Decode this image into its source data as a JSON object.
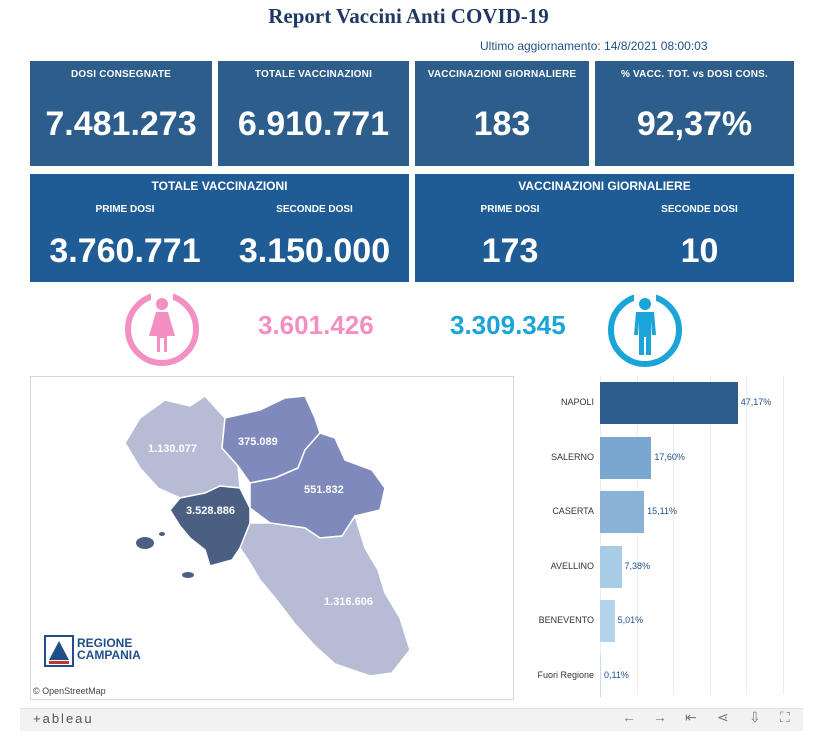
{
  "header": {
    "title": "Report Vaccini Anti COVID-19",
    "updated": "Ultimo aggiornamento: 14/8/2021 08:00:03"
  },
  "kpis": [
    {
      "label": "DOSI CONSEGNATE",
      "value": "7.481.273"
    },
    {
      "label": "TOTALE VACCINAZIONI",
      "value": "6.910.771"
    },
    {
      "label": "VACCINAZIONI GIORNALIERE",
      "value": "183"
    },
    {
      "label": "% VACC. TOT. vs DOSI CONS.",
      "value": "92,37%"
    }
  ],
  "totale_vaccinazioni": {
    "title": "TOTALE VACCINAZIONI",
    "prime_label": "PRIME DOSI",
    "prime_value": "3.760.771",
    "seconde_label": "SECONDE DOSI",
    "seconde_value": "3.150.000"
  },
  "vaccinazioni_giornaliere": {
    "title": "VACCINAZIONI GIORNALIERE",
    "prime_label": "PRIME DOSI",
    "prime_value": "173",
    "seconde_label": "SECONDE DOSI",
    "seconde_value": "10"
  },
  "gender": {
    "female_value": "3.601.426",
    "male_value": "3.309.345",
    "female_color": "#f48fc1",
    "male_color": "#1aa4d8",
    "female_icon": "female-figure-icon",
    "male_icon": "male-figure-icon"
  },
  "map": {
    "regions": [
      {
        "name": "caserta",
        "value": "1.130.077"
      },
      {
        "name": "benevento",
        "value": "375.089"
      },
      {
        "name": "avellino",
        "value": "551.832"
      },
      {
        "name": "napoli",
        "value": "3.528.886"
      },
      {
        "name": "salerno",
        "value": "1.316.606"
      }
    ],
    "logo_line1": "REGIONE",
    "logo_line2": "CAMPANIA",
    "attribution": "© OpenStreetMap"
  },
  "chart_data": {
    "type": "bar",
    "orientation": "horizontal",
    "categories": [
      "NAPOLI",
      "SALERNO",
      "CASERTA",
      "AVELLINO",
      "BENEVENTO",
      "Fuori Regione"
    ],
    "values": [
      47.17,
      17.6,
      15.11,
      7.38,
      5.01,
      0.11
    ],
    "value_labels": [
      "47,17%",
      "17,60%",
      "15,11%",
      "7,38%",
      "5,01%",
      "0,11%"
    ],
    "colors": [
      "#2c5d8b",
      "#7aa7d0",
      "#8ab2d6",
      "#a8cbe6",
      "#b4d3ec",
      "#c8def0"
    ],
    "xlim": [
      0,
      50
    ]
  },
  "footer": {
    "brand": "+ableau",
    "icons": [
      "undo-icon",
      "redo-icon",
      "revert-icon",
      "share-icon",
      "download-icon",
      "fullscreen-icon"
    ]
  }
}
